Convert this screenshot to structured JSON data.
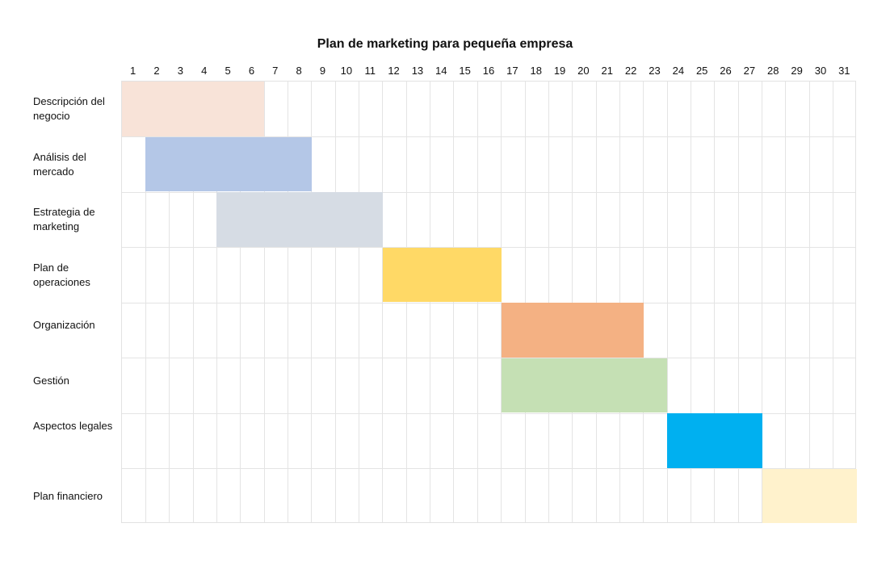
{
  "chart_data": {
    "type": "gantt",
    "title": "Plan de marketing para pequeña empresa",
    "xlabel": "",
    "ylabel": "",
    "days": [
      1,
      2,
      3,
      4,
      5,
      6,
      7,
      8,
      9,
      10,
      11,
      12,
      13,
      14,
      15,
      16,
      17,
      18,
      19,
      20,
      21,
      22,
      23,
      24,
      25,
      26,
      27,
      28,
      29,
      30,
      31
    ],
    "grid": true,
    "tasks": [
      {
        "name": "Descripción del negocio",
        "label_lines": [
          "Descripción del",
          "negocio"
        ],
        "start": 1,
        "end": 6,
        "color": "#F8E3D8"
      },
      {
        "name": "Análisis del mercado",
        "label_lines": [
          "Análisis del",
          "mercado"
        ],
        "start": 2,
        "end": 8,
        "color": "#B4C7E7"
      },
      {
        "name": "Estrategia de marketing",
        "label_lines": [
          "Estrategia de",
          "marketing"
        ],
        "start": 5,
        "end": 11,
        "color": "#D6DCE4"
      },
      {
        "name": "Plan de operaciones",
        "label_lines": [
          "Plan de",
          "operaciones"
        ],
        "start": 12,
        "end": 16,
        "color": "#FFD966"
      },
      {
        "name": "Organización",
        "label_lines": [
          "Organización"
        ],
        "start": 17,
        "end": 22,
        "color": "#F4B183"
      },
      {
        "name": "Gestión",
        "label_lines": [
          "Gestión"
        ],
        "start": 17,
        "end": 23,
        "color": "#C5E0B4"
      },
      {
        "name": "Aspectos legales",
        "label_lines": [
          "Aspectos legales"
        ],
        "start": 24,
        "end": 27,
        "color": "#00B0F0"
      },
      {
        "name": "Plan financiero",
        "label_lines": [
          "Plan financiero"
        ],
        "start": 28,
        "end": 31,
        "color": "#FFF2CC"
      }
    ]
  }
}
